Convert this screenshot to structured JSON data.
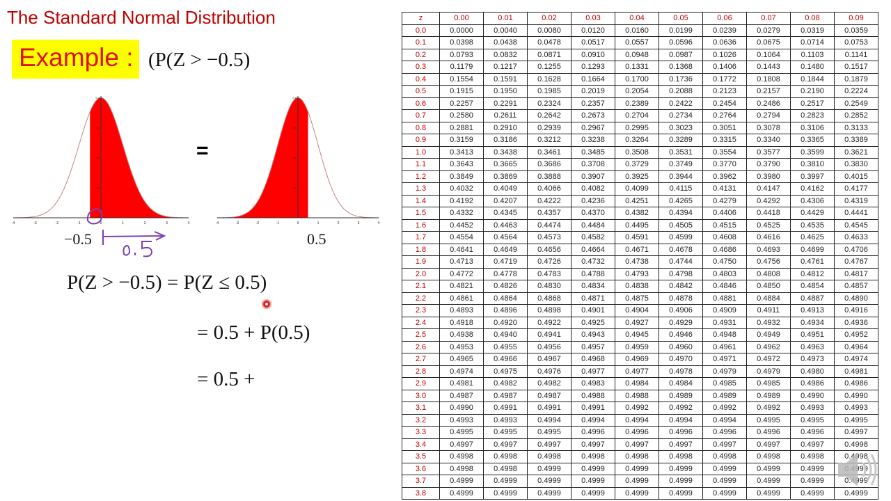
{
  "slide": {
    "title": "The Standard Normal Distribution",
    "example_label": "Example :",
    "example_expr": "(P(Z > −0.5)",
    "equals": "=",
    "left_graph_label": "−0.5",
    "right_graph_label": "0.5",
    "handwritten_note": "0.5",
    "equations": [
      "P(Z > −0.5) = P(Z ≤ 0.5)",
      "= 0.5 + P(0.5)",
      "=  0.5 +"
    ],
    "colors": {
      "title": "#c00000",
      "highlight": "#ffff00",
      "shade": "#ff0000",
      "annotation": "#7b3fb0"
    }
  },
  "graphs": [
    {
      "name": "left",
      "x_ticks": [
        "-4",
        "-3",
        "-2",
        "-1",
        "0",
        "1",
        "2",
        "3",
        "4"
      ],
      "y_ticks": [
        "0.4",
        "0.3",
        "0.2",
        "0.1"
      ],
      "shade_from": -0.5,
      "shade_to": 4
    },
    {
      "name": "right",
      "x_ticks": [
        "-4",
        "-3",
        "-2",
        "-1",
        "0",
        "1",
        "2",
        "3",
        "4"
      ],
      "y_ticks": [
        "0.4",
        "0.3",
        "0.2",
        "0.1"
      ],
      "shade_from": -4,
      "shade_to": 0.5
    }
  ],
  "table": {
    "header": [
      "z",
      "0.00",
      "0.01",
      "0.02",
      "0.03",
      "0.04",
      "0.05",
      "0.06",
      "0.07",
      "0.08",
      "0.09"
    ],
    "rows": [
      [
        "0.0",
        "0.0000",
        "0.0040",
        "0.0080",
        "0.0120",
        "0.0160",
        "0.0199",
        "0.0239",
        "0.0279",
        "0.0319",
        "0.0359"
      ],
      [
        "0.1",
        "0.0398",
        "0.0438",
        "0.0478",
        "0.0517",
        "0.0557",
        "0.0596",
        "0.0636",
        "0.0675",
        "0.0714",
        "0.0753"
      ],
      [
        "0.2",
        "0.0793",
        "0.0832",
        "0.0871",
        "0.0910",
        "0.0948",
        "0.0987",
        "0.1026",
        "0.1064",
        "0.1103",
        "0.1141"
      ],
      [
        "0.3",
        "0.1179",
        "0.1217",
        "0.1255",
        "0.1293",
        "0.1331",
        "0.1368",
        "0.1406",
        "0.1443",
        "0.1480",
        "0.1517"
      ],
      [
        "0.4",
        "0.1554",
        "0.1591",
        "0.1628",
        "0.1664",
        "0.1700",
        "0.1736",
        "0.1772",
        "0.1808",
        "0.1844",
        "0.1879"
      ],
      [
        "0.5",
        "0.1915",
        "0.1950",
        "0.1985",
        "0.2019",
        "0.2054",
        "0.2088",
        "0.2123",
        "0.2157",
        "0.2190",
        "0.2224"
      ],
      [
        "0.6",
        "0.2257",
        "0.2291",
        "0.2324",
        "0.2357",
        "0.2389",
        "0.2422",
        "0.2454",
        "0.2486",
        "0.2517",
        "0.2549"
      ],
      [
        "0.7",
        "0.2580",
        "0.2611",
        "0.2642",
        "0.2673",
        "0.2704",
        "0.2734",
        "0.2764",
        "0.2794",
        "0.2823",
        "0.2852"
      ],
      [
        "0.8",
        "0.2881",
        "0.2910",
        "0.2939",
        "0.2967",
        "0.2995",
        "0.3023",
        "0.3051",
        "0.3078",
        "0.3106",
        "0.3133"
      ],
      [
        "0.9",
        "0.3159",
        "0.3186",
        "0.3212",
        "0.3238",
        "0.3264",
        "0.3289",
        "0.3315",
        "0.3340",
        "0.3365",
        "0.3389"
      ],
      [
        "1.0",
        "0.3413",
        "0.3438",
        "0.3461",
        "0.3485",
        "0.3508",
        "0.3531",
        "0.3554",
        "0.3577",
        "0.3599",
        "0.3621"
      ],
      [
        "1.1",
        "0.3643",
        "0.3665",
        "0.3686",
        "0.3708",
        "0.3729",
        "0.3749",
        "0.3770",
        "0.3790",
        "0.3810",
        "0.3830"
      ],
      [
        "1.2",
        "0.3849",
        "0.3869",
        "0.3888",
        "0.3907",
        "0.3925",
        "0.3944",
        "0.3962",
        "0.3980",
        "0.3997",
        "0.4015"
      ],
      [
        "1.3",
        "0.4032",
        "0.4049",
        "0.4066",
        "0.4082",
        "0.4099",
        "0.4115",
        "0.4131",
        "0.4147",
        "0.4162",
        "0.4177"
      ],
      [
        "1.4",
        "0.4192",
        "0.4207",
        "0.4222",
        "0.4236",
        "0.4251",
        "0.4265",
        "0.4279",
        "0.4292",
        "0.4306",
        "0.4319"
      ],
      [
        "1.5",
        "0.4332",
        "0.4345",
        "0.4357",
        "0.4370",
        "0.4382",
        "0.4394",
        "0.4406",
        "0.4418",
        "0.4429",
        "0.4441"
      ],
      [
        "1.6",
        "0.4452",
        "0.4463",
        "0.4474",
        "0.4484",
        "0.4495",
        "0.4505",
        "0.4515",
        "0.4525",
        "0.4535",
        "0.4545"
      ],
      [
        "1.7",
        "0.4554",
        "0.4564",
        "0.4573",
        "0.4582",
        "0.4591",
        "0.4599",
        "0.4608",
        "0.4616",
        "0.4625",
        "0.4633"
      ],
      [
        "1.8",
        "0.4641",
        "0.4649",
        "0.4656",
        "0.4664",
        "0.4671",
        "0.4678",
        "0.4686",
        "0.4693",
        "0.4699",
        "0.4706"
      ],
      [
        "1.9",
        "0.4713",
        "0.4719",
        "0.4726",
        "0.4732",
        "0.4738",
        "0.4744",
        "0.4750",
        "0.4756",
        "0.4761",
        "0.4767"
      ],
      [
        "2.0",
        "0.4772",
        "0.4778",
        "0.4783",
        "0.4788",
        "0.4793",
        "0.4798",
        "0.4803",
        "0.4808",
        "0.4812",
        "0.4817"
      ],
      [
        "2.1",
        "0.4821",
        "0.4826",
        "0.4830",
        "0.4834",
        "0.4838",
        "0.4842",
        "0.4846",
        "0.4850",
        "0.4854",
        "0.4857"
      ],
      [
        "2.2",
        "0.4861",
        "0.4864",
        "0.4868",
        "0.4871",
        "0.4875",
        "0.4878",
        "0.4881",
        "0.4884",
        "0.4887",
        "0.4890"
      ],
      [
        "2.3",
        "0.4893",
        "0.4896",
        "0.4898",
        "0.4901",
        "0.4904",
        "0.4906",
        "0.4909",
        "0.4911",
        "0.4913",
        "0.4916"
      ],
      [
        "2.4",
        "0.4918",
        "0.4920",
        "0.4922",
        "0.4925",
        "0.4927",
        "0.4929",
        "0.4931",
        "0.4932",
        "0.4934",
        "0.4936"
      ],
      [
        "2.5",
        "0.4938",
        "0.4940",
        "0.4941",
        "0.4943",
        "0.4945",
        "0.4946",
        "0.4948",
        "0.4949",
        "0.4951",
        "0.4952"
      ],
      [
        "2.6",
        "0.4953",
        "0.4955",
        "0.4956",
        "0.4957",
        "0.4959",
        "0.4960",
        "0.4961",
        "0.4962",
        "0.4963",
        "0.4964"
      ],
      [
        "2.7",
        "0.4965",
        "0.4966",
        "0.4967",
        "0.4968",
        "0.4969",
        "0.4970",
        "0.4971",
        "0.4972",
        "0.4973",
        "0.4974"
      ],
      [
        "2.8",
        "0.4974",
        "0.4975",
        "0.4976",
        "0.4977",
        "0.4977",
        "0.4978",
        "0.4979",
        "0.4979",
        "0.4980",
        "0.4981"
      ],
      [
        "2.9",
        "0.4981",
        "0.4982",
        "0.4982",
        "0.4983",
        "0.4984",
        "0.4984",
        "0.4985",
        "0.4985",
        "0.4986",
        "0.4986"
      ],
      [
        "3.0",
        "0.4987",
        "0.4987",
        "0.4987",
        "0.4988",
        "0.4988",
        "0.4989",
        "0.4989",
        "0.4989",
        "0.4990",
        "0.4990"
      ],
      [
        "3.1",
        "0.4990",
        "0.4991",
        "0.4991",
        "0.4991",
        "0.4992",
        "0.4992",
        "0.4992",
        "0.4992",
        "0.4993",
        "0.4993"
      ],
      [
        "3.2",
        "0.4993",
        "0.4993",
        "0.4994",
        "0.4994",
        "0.4994",
        "0.4994",
        "0.4994",
        "0.4995",
        "0.4995",
        "0.4995"
      ],
      [
        "3.3",
        "0.4995",
        "0.4995",
        "0.4995",
        "0.4996",
        "0.4996",
        "0.4996",
        "0.4996",
        "0.4996",
        "0.4996",
        "0.4997"
      ],
      [
        "3.4",
        "0.4997",
        "0.4997",
        "0.4997",
        "0.4997",
        "0.4997",
        "0.4997",
        "0.4997",
        "0.4997",
        "0.4997",
        "0.4998"
      ],
      [
        "3.5",
        "0.4998",
        "0.4998",
        "0.4998",
        "0.4998",
        "0.4998",
        "0.4998",
        "0.4998",
        "0.4998",
        "0.4998",
        "0.4998"
      ],
      [
        "3.6",
        "0.4998",
        "0.4998",
        "0.4999",
        "0.4999",
        "0.4999",
        "0.4999",
        "0.4999",
        "0.4999",
        "0.4999",
        "0.4999"
      ],
      [
        "3.7",
        "0.4999",
        "0.4999",
        "0.4999",
        "0.4999",
        "0.4999",
        "0.4999",
        "0.4999",
        "0.4999",
        "0.4999",
        "0.4999"
      ],
      [
        "3.8",
        "0.4999",
        "0.4999",
        "0.4999",
        "0.4999",
        "0.4999",
        "0.4999",
        "0.4999",
        "0.4999",
        "0.4999",
        "0.4999"
      ]
    ]
  },
  "overlay": {
    "speaker_icon": "speaker-icon",
    "cursor": "laser-pointer-dot"
  }
}
